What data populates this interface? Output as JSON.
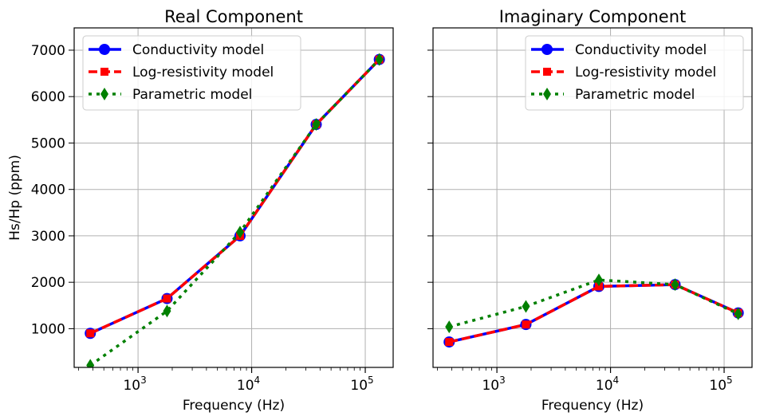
{
  "chart_data": [
    {
      "type": "line",
      "title": "Real Component",
      "xlabel": "Frequency (Hz)",
      "ylabel": "Hs/Hp (ppm)",
      "xscale": "log",
      "xlim": [
        274,
        176000
      ],
      "ylim": [
        166,
        7480
      ],
      "xticks": [
        1000,
        10000,
        100000
      ],
      "xtick_labels": [
        "10^3",
        "10^4",
        "10^5"
      ],
      "yticks": [
        1000,
        2000,
        3000,
        4000,
        5000,
        6000,
        7000
      ],
      "ytick_labels": [
        "1000",
        "2000",
        "3000",
        "4000",
        "5000",
        "6000",
        "7000"
      ],
      "grid": true,
      "legend": "top-left",
      "x": [
        380,
        1800,
        7900,
        37000,
        133000
      ],
      "series": [
        {
          "name": "Conductivity model",
          "color": "#0000ff",
          "style": "solid",
          "marker": "circle",
          "values": [
            900,
            1650,
            3000,
            5400,
            6800
          ]
        },
        {
          "name": "Log-resistivity model",
          "color": "#ff0000",
          "style": "dashed",
          "marker": "square",
          "values": [
            900,
            1650,
            3000,
            5400,
            6800
          ]
        },
        {
          "name": "Parametric model",
          "color": "#008000",
          "style": "dotted",
          "marker": "diamond",
          "values": [
            210,
            1380,
            3080,
            5400,
            6800
          ]
        }
      ]
    },
    {
      "type": "line",
      "title": "Imaginary Component",
      "xlabel": "Frequency (Hz)",
      "ylabel": "",
      "xscale": "log",
      "xlim": [
        274,
        176000
      ],
      "ylim": [
        166,
        7480
      ],
      "xticks": [
        1000,
        10000,
        100000
      ],
      "xtick_labels": [
        "10^3",
        "10^4",
        "10^5"
      ],
      "yticks": [
        1000,
        2000,
        3000,
        4000,
        5000,
        6000,
        7000
      ],
      "ytick_labels": [],
      "grid": true,
      "legend": "top-right",
      "x": [
        380,
        1800,
        7900,
        37000,
        133000
      ],
      "series": [
        {
          "name": "Conductivity model",
          "color": "#0000ff",
          "style": "solid",
          "marker": "circle",
          "values": [
            714,
            1090,
            1910,
            1950,
            1340
          ]
        },
        {
          "name": "Log-resistivity model",
          "color": "#ff0000",
          "style": "dashed",
          "marker": "square",
          "values": [
            714,
            1090,
            1910,
            1950,
            1340
          ]
        },
        {
          "name": "Parametric model",
          "color": "#008000",
          "style": "dotted",
          "marker": "diamond",
          "values": [
            1040,
            1480,
            2050,
            1950,
            1320
          ]
        }
      ]
    }
  ]
}
